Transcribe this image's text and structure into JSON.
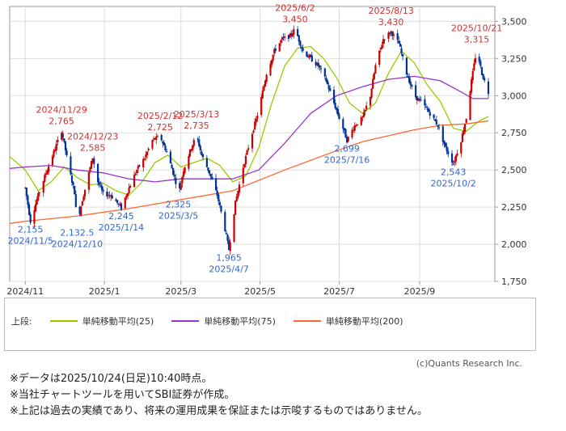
{
  "chart_data": {
    "type": "line",
    "style": "candlestick",
    "ylim": [
      1750,
      3600
    ],
    "yticks": [
      1750,
      2000,
      2250,
      2500,
      2750,
      3000,
      3250,
      3500
    ],
    "ytick_labels": [
      "1,750",
      "2,000",
      "2,250",
      "2,500",
      "2,750",
      "3,000",
      "3,250",
      "3,500"
    ],
    "xticks": [
      {
        "label": "2024/11",
        "day": 0
      },
      {
        "label": "2025/1",
        "day": 61
      },
      {
        "label": "2025/3",
        "day": 120
      },
      {
        "label": "2025/5",
        "day": 181
      },
      {
        "label": "2025/7",
        "day": 242
      },
      {
        "label": "2025/9",
        "day": 304
      }
    ],
    "x_range_days": [
      -12,
      362
    ],
    "price_path": [
      [
        0,
        2380
      ],
      [
        4,
        2155
      ],
      [
        10,
        2330
      ],
      [
        16,
        2480
      ],
      [
        22,
        2620
      ],
      [
        28,
        2765
      ],
      [
        34,
        2500
      ],
      [
        38,
        2350
      ],
      [
        40,
        2132.5
      ],
      [
        44,
        2300
      ],
      [
        48,
        2440
      ],
      [
        52,
        2585
      ],
      [
        56,
        2420
      ],
      [
        60,
        2340
      ],
      [
        66,
        2330
      ],
      [
        74,
        2245
      ],
      [
        80,
        2380
      ],
      [
        86,
        2500
      ],
      [
        92,
        2580
      ],
      [
        98,
        2700
      ],
      [
        104,
        2725
      ],
      [
        110,
        2600
      ],
      [
        116,
        2420
      ],
      [
        118,
        2325
      ],
      [
        122,
        2500
      ],
      [
        128,
        2650
      ],
      [
        132,
        2735
      ],
      [
        136,
        2600
      ],
      [
        142,
        2480
      ],
      [
        148,
        2330
      ],
      [
        154,
        2100
      ],
      [
        157,
        1965
      ],
      [
        162,
        2280
      ],
      [
        168,
        2520
      ],
      [
        174,
        2720
      ],
      [
        180,
        2900
      ],
      [
        186,
        3150
      ],
      [
        192,
        3300
      ],
      [
        198,
        3380
      ],
      [
        204,
        3400
      ],
      [
        208,
        3450
      ],
      [
        214,
        3300
      ],
      [
        220,
        3250
      ],
      [
        226,
        3200
      ],
      [
        232,
        3100
      ],
      [
        238,
        2950
      ],
      [
        242,
        2850
      ],
      [
        245,
        2780
      ],
      [
        248,
        2699
      ],
      [
        254,
        2800
      ],
      [
        260,
        2850
      ],
      [
        266,
        3000
      ],
      [
        270,
        3200
      ],
      [
        276,
        3380
      ],
      [
        282,
        3430
      ],
      [
        288,
        3350
      ],
      [
        294,
        3150
      ],
      [
        300,
        3000
      ],
      [
        306,
        2950
      ],
      [
        312,
        2880
      ],
      [
        318,
        2800
      ],
      [
        324,
        2650
      ],
      [
        330,
        2543
      ],
      [
        336,
        2700
      ],
      [
        340,
        2850
      ],
      [
        344,
        3100
      ],
      [
        348,
        3315
      ],
      [
        352,
        3150
      ],
      [
        357,
        3020
      ]
    ],
    "series": [
      {
        "name": "単純移動平均(25)",
        "color": "#99cc00",
        "points": [
          [
            -12,
            2590
          ],
          [
            0,
            2500
          ],
          [
            10,
            2360
          ],
          [
            20,
            2420
          ],
          [
            30,
            2520
          ],
          [
            40,
            2450
          ],
          [
            50,
            2400
          ],
          [
            60,
            2410
          ],
          [
            70,
            2360
          ],
          [
            80,
            2330
          ],
          [
            90,
            2420
          ],
          [
            100,
            2550
          ],
          [
            110,
            2600
          ],
          [
            120,
            2520
          ],
          [
            130,
            2550
          ],
          [
            140,
            2580
          ],
          [
            150,
            2530
          ],
          [
            160,
            2420
          ],
          [
            170,
            2460
          ],
          [
            180,
            2650
          ],
          [
            190,
            2950
          ],
          [
            200,
            3200
          ],
          [
            210,
            3320
          ],
          [
            220,
            3330
          ],
          [
            230,
            3250
          ],
          [
            240,
            3120
          ],
          [
            250,
            2950
          ],
          [
            260,
            2880
          ],
          [
            270,
            2950
          ],
          [
            280,
            3150
          ],
          [
            290,
            3300
          ],
          [
            300,
            3220
          ],
          [
            310,
            3070
          ],
          [
            320,
            2960
          ],
          [
            330,
            2780
          ],
          [
            340,
            2760
          ],
          [
            350,
            2830
          ],
          [
            357,
            2860
          ]
        ]
      },
      {
        "name": "単純移動平均(75)",
        "color": "#9933cc",
        "points": [
          [
            -12,
            2510
          ],
          [
            0,
            2520
          ],
          [
            20,
            2530
          ],
          [
            40,
            2500
          ],
          [
            60,
            2480
          ],
          [
            80,
            2440
          ],
          [
            100,
            2420
          ],
          [
            120,
            2440
          ],
          [
            140,
            2440
          ],
          [
            160,
            2440
          ],
          [
            180,
            2500
          ],
          [
            200,
            2680
          ],
          [
            220,
            2880
          ],
          [
            240,
            3000
          ],
          [
            260,
            3060
          ],
          [
            280,
            3110
          ],
          [
            300,
            3130
          ],
          [
            320,
            3100
          ],
          [
            335,
            3030
          ],
          [
            345,
            2980
          ],
          [
            357,
            2980
          ]
        ]
      },
      {
        "name": "単純移動平均(200)",
        "color": "#ff6633",
        "points": [
          [
            -12,
            2140
          ],
          [
            0,
            2155
          ],
          [
            40,
            2190
          ],
          [
            80,
            2240
          ],
          [
            120,
            2300
          ],
          [
            160,
            2360
          ],
          [
            200,
            2500
          ],
          [
            240,
            2630
          ],
          [
            260,
            2690
          ],
          [
            280,
            2730
          ],
          [
            300,
            2770
          ],
          [
            320,
            2800
          ],
          [
            340,
            2810
          ],
          [
            357,
            2830
          ]
        ]
      }
    ],
    "annotations": [
      {
        "text": "2024/11/29",
        "day": 28,
        "value": 2765,
        "color": "#cc3333",
        "pos": "above",
        "line": 2
      },
      {
        "text": "2,765",
        "day": 28,
        "value": 2765,
        "color": "#cc3333",
        "pos": "above",
        "line": 1
      },
      {
        "text": "2024/12/23",
        "day": 52,
        "value": 2585,
        "color": "#cc3333",
        "pos": "above",
        "line": 2
      },
      {
        "text": "2,585",
        "day": 52,
        "value": 2585,
        "color": "#cc3333",
        "pos": "above",
        "line": 1
      },
      {
        "text": "2025/2/12",
        "day": 104,
        "value": 2725,
        "color": "#cc3333",
        "pos": "above",
        "line": 2
      },
      {
        "text": "2,725",
        "day": 104,
        "value": 2725,
        "color": "#cc3333",
        "pos": "above",
        "line": 1
      },
      {
        "text": "2025/3/13",
        "day": 132,
        "value": 2735,
        "color": "#cc3333",
        "pos": "above",
        "line": 2
      },
      {
        "text": "2,735",
        "day": 132,
        "value": 2735,
        "color": "#cc3333",
        "pos": "above",
        "line": 1
      },
      {
        "text": "2025/6/2",
        "day": 208,
        "value": 3450,
        "color": "#cc3333",
        "pos": "above",
        "line": 2
      },
      {
        "text": "3,450",
        "day": 208,
        "value": 3450,
        "color": "#cc3333",
        "pos": "above",
        "line": 1
      },
      {
        "text": "2025/8/13",
        "day": 282,
        "value": 3430,
        "color": "#cc3333",
        "pos": "above",
        "line": 2
      },
      {
        "text": "3,430",
        "day": 282,
        "value": 3430,
        "color": "#cc3333",
        "pos": "above",
        "line": 1
      },
      {
        "text": "2025/10/21",
        "day": 348,
        "value": 3315,
        "color": "#cc3333",
        "pos": "above",
        "line": 2
      },
      {
        "text": "3,315",
        "day": 348,
        "value": 3315,
        "color": "#cc3333",
        "pos": "above",
        "line": 1
      },
      {
        "text": "2,155",
        "day": 4,
        "value": 2155,
        "color": "#3366cc",
        "pos": "below",
        "line": 1
      },
      {
        "text": "2024/11/5",
        "day": 4,
        "value": 2155,
        "color": "#3366cc",
        "pos": "below",
        "line": 2
      },
      {
        "text": "2,132.5",
        "day": 40,
        "value": 2132.5,
        "color": "#3366cc",
        "pos": "below",
        "line": 1
      },
      {
        "text": "2024/12/10",
        "day": 40,
        "value": 2132.5,
        "color": "#3366cc",
        "pos": "below",
        "line": 2
      },
      {
        "text": "2,245",
        "day": 74,
        "value": 2245,
        "color": "#3366cc",
        "pos": "below",
        "line": 1
      },
      {
        "text": "2025/1/14",
        "day": 74,
        "value": 2245,
        "color": "#3366cc",
        "pos": "below",
        "line": 2
      },
      {
        "text": "2,325",
        "day": 118,
        "value": 2325,
        "color": "#3366cc",
        "pos": "below",
        "line": 1
      },
      {
        "text": "2025/3/5",
        "day": 118,
        "value": 2325,
        "color": "#3366cc",
        "pos": "below",
        "line": 2
      },
      {
        "text": "1,965",
        "day": 157,
        "value": 1965,
        "color": "#3366cc",
        "pos": "below",
        "line": 1
      },
      {
        "text": "2025/4/7",
        "day": 157,
        "value": 1965,
        "color": "#3366cc",
        "pos": "below",
        "line": 2
      },
      {
        "text": "2,699",
        "day": 248,
        "value": 2699,
        "color": "#3366cc",
        "pos": "below",
        "line": 1
      },
      {
        "text": "2025/7/16",
        "day": 248,
        "value": 2699,
        "color": "#3366cc",
        "pos": "below",
        "line": 2
      },
      {
        "text": "2,543",
        "day": 330,
        "value": 2543,
        "color": "#3366cc",
        "pos": "below",
        "line": 1
      },
      {
        "text": "2025/10/2",
        "day": 330,
        "value": 2543,
        "color": "#3366cc",
        "pos": "below",
        "line": 2
      }
    ],
    "colors": {
      "up": "#cc0000",
      "down": "#003399",
      "grid": "#dddddd",
      "frame": "#999999"
    }
  },
  "legend": {
    "prefix": "上段:",
    "items": [
      {
        "label": "単純移動平均(25)",
        "color": "#99cc00"
      },
      {
        "label": "単純移動平均(75)",
        "color": "#9933cc"
      },
      {
        "label": "単純移動平均(200)",
        "color": "#ff6633"
      }
    ]
  },
  "credit": "(c)Quants Research Inc.",
  "notes": [
    "※データは2025/10/24(日足)10:40時点。",
    "※当社チャートツールを用いてSBI証券が作成。",
    "※上記は過去の実績であり、将来の運用成果を保証または示唆するものではありません。"
  ]
}
